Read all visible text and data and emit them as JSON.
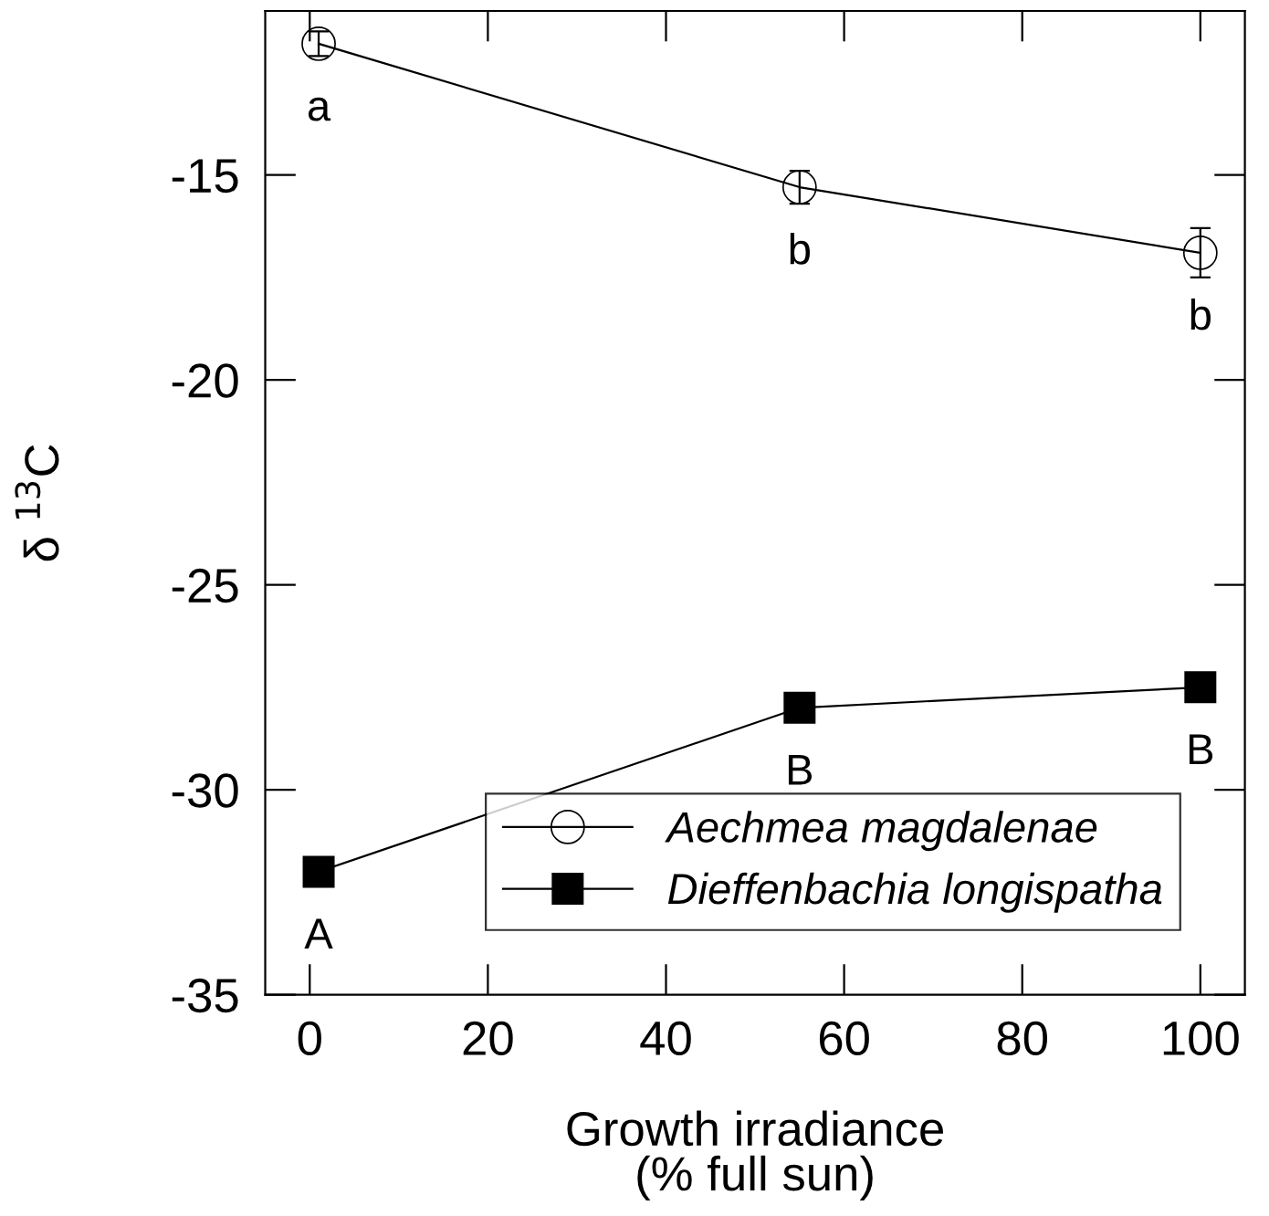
{
  "chart_data": {
    "type": "line",
    "xlabel": "Growth irradiance\n(% full sun)",
    "ylabel": "δ $^{13}$C",
    "x": [
      1,
      55,
      100
    ],
    "xlim": [
      -5,
      105
    ],
    "xticks": [
      0,
      20,
      40,
      60,
      80,
      100
    ],
    "ylim": [
      -35,
      -11
    ],
    "yticks": [
      -35,
      -30,
      -25,
      -20,
      -15
    ],
    "series": [
      {
        "name": "Aechmea magdalenae",
        "color": "#000000",
        "marker": "circle",
        "values": [
          -11.8,
          -15.3,
          -16.9
        ],
        "errors": [
          0.3,
          0.4,
          0.6
        ]
      },
      {
        "name": "Dieffenbachia longispatha",
        "color": "#000000",
        "marker": "square",
        "values": [
          -32.0,
          -28.0,
          -27.5
        ]
      }
    ],
    "annotations": [
      {
        "text": "a",
        "x": 1,
        "y": -11.8
      },
      {
        "text": "b",
        "x": 55,
        "y": -15.3
      },
      {
        "text": "b",
        "x": 100,
        "y": -16.9
      },
      {
        "text": "A",
        "x": 1,
        "y": -32.0
      },
      {
        "text": "B",
        "x": 55,
        "y": -28.0
      },
      {
        "text": "B",
        "x": 100,
        "y": -27.5
      }
    ],
    "legend": "bottom right",
    "grid": false
  }
}
